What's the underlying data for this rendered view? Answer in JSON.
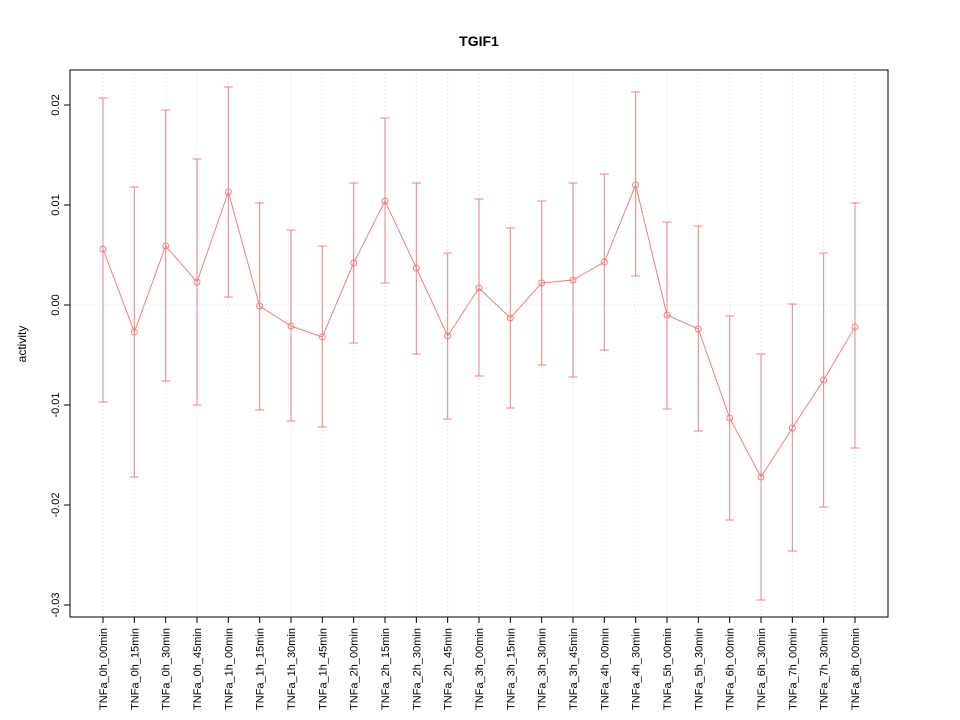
{
  "chart_data": {
    "type": "line",
    "title": "TGIF1",
    "xlabel": "",
    "ylabel": "activity",
    "categories": [
      "TNFa_0h_00min",
      "TNFa_0h_15min",
      "TNFa_0h_30min",
      "TNFa_0h_45min",
      "TNFa_1h_00min",
      "TNFa_1h_15min",
      "TNFa_1h_30min",
      "TNFa_1h_45min",
      "TNFa_2h_00min",
      "TNFa_2h_15min",
      "TNFa_2h_30min",
      "TNFa_2h_45min",
      "TNFa_3h_00min",
      "TNFa_3h_15min",
      "TNFa_3h_30min",
      "TNFa_3h_45min",
      "TNFa_4h_00min",
      "TNFa_4h_30min",
      "TNFa_5h_00min",
      "TNFa_5h_30min",
      "TNFa_6h_00min",
      "TNFa_6h_30min",
      "TNFa_7h_00min",
      "TNFa_7h_30min",
      "TNFa_8h_00min"
    ],
    "series": [
      {
        "name": "TGIF1 activity",
        "values": [
          0.0056,
          -0.0027,
          0.0059,
          0.0023,
          0.0113,
          -0.0001,
          -0.0021,
          -0.0032,
          0.0042,
          0.0104,
          0.0037,
          -0.0031,
          0.0017,
          -0.0013,
          0.0022,
          0.0025,
          0.0043,
          0.012,
          -0.001,
          -0.0024,
          -0.0113,
          -0.0172,
          -0.0123,
          -0.0075,
          -0.0022
        ],
        "upper": [
          0.0207,
          0.0118,
          0.0195,
          0.0146,
          0.0218,
          0.0102,
          0.0075,
          0.0059,
          0.0122,
          0.0187,
          0.0122,
          0.0052,
          0.0106,
          0.0077,
          0.0104,
          0.0122,
          0.0131,
          0.0213,
          0.0083,
          0.0079,
          -0.0011,
          -0.0049,
          0.0001,
          0.0052,
          0.0102
        ],
        "lower": [
          -0.0097,
          -0.0172,
          -0.0076,
          -0.01,
          0.0008,
          -0.0105,
          -0.0116,
          -0.0122,
          -0.0038,
          0.0022,
          -0.0049,
          -0.0114,
          -0.0071,
          -0.0103,
          -0.006,
          -0.0072,
          -0.0045,
          0.0029,
          -0.0104,
          -0.0126,
          -0.0215,
          -0.0295,
          -0.0246,
          -0.0202,
          -0.0143
        ]
      }
    ],
    "ylim": [
      -0.0312,
      0.0235
    ],
    "yticks": [
      -0.03,
      -0.02,
      -0.01,
      0.0,
      0.01,
      0.02
    ],
    "line_color": "#f08080",
    "point_style": "open-circle",
    "error_bars": true,
    "grid": {
      "vertical_dotted": true,
      "zero_line_dotted": true,
      "color": "#d6d6d6"
    },
    "legend": "none"
  }
}
